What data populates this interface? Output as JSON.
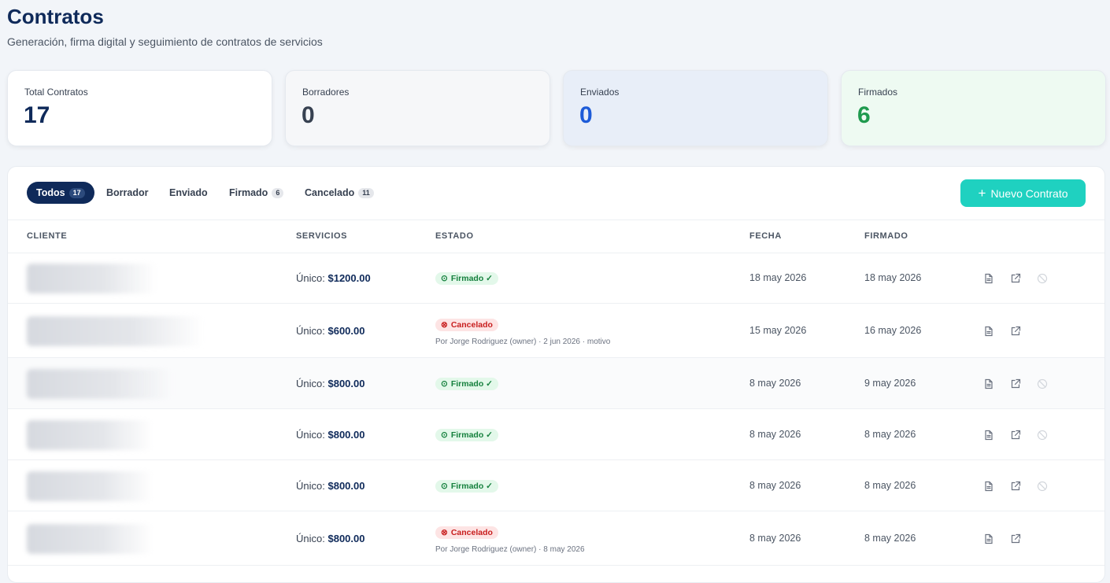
{
  "header": {
    "title": "Contratos",
    "subtitle": "Generación, firma digital y seguimiento de contratos de servicios"
  },
  "stats": [
    {
      "label": "Total Contratos",
      "value": 17
    },
    {
      "label": "Borradores",
      "value": 0
    },
    {
      "label": "Enviados",
      "value": 0
    },
    {
      "label": "Firmados",
      "value": 6
    }
  ],
  "tabs": [
    {
      "label": "Todos",
      "count": 17
    },
    {
      "label": "Borrador"
    },
    {
      "label": "Enviado"
    },
    {
      "label": "Firmado",
      "count": 6
    },
    {
      "label": "Cancelado",
      "count": 11
    }
  ],
  "new_button": "Nuevo Contrato",
  "table": {
    "columns": [
      "CLIENTE",
      "SERVICIOS",
      "ESTADO",
      "FECHA",
      "FIRMADO"
    ],
    "rows": [
      {
        "service_type": "Único:",
        "amount": "$1200.00",
        "status": "Firmado ✓",
        "date": "18 may 2026",
        "signed": "18 may 2026"
      },
      {
        "service_type": "Único:",
        "amount": "$600.00",
        "status": "Cancelado",
        "note": "Por Jorge Rodriguez (owner) · 2 jun 2026 · motivo",
        "date": "15 may 2026",
        "signed": "16 may 2026"
      },
      {
        "service_type": "Único:",
        "amount": "$800.00",
        "status": "Firmado ✓",
        "date": "8 may 2026",
        "signed": "9 may 2026"
      },
      {
        "service_type": "Único:",
        "amount": "$800.00",
        "status": "Firmado ✓",
        "date": "8 may 2026",
        "signed": "8 may 2026"
      },
      {
        "service_type": "Único:",
        "amount": "$800.00",
        "status": "Firmado ✓",
        "date": "8 may 2026",
        "signed": "8 may 2026"
      },
      {
        "service_type": "Único:",
        "amount": "$800.00",
        "status": "Cancelado",
        "note": "Por Jorge Rodriguez (owner) · 8 may 2026",
        "date": "8 may 2026",
        "signed": "8 may 2026"
      }
    ]
  }
}
